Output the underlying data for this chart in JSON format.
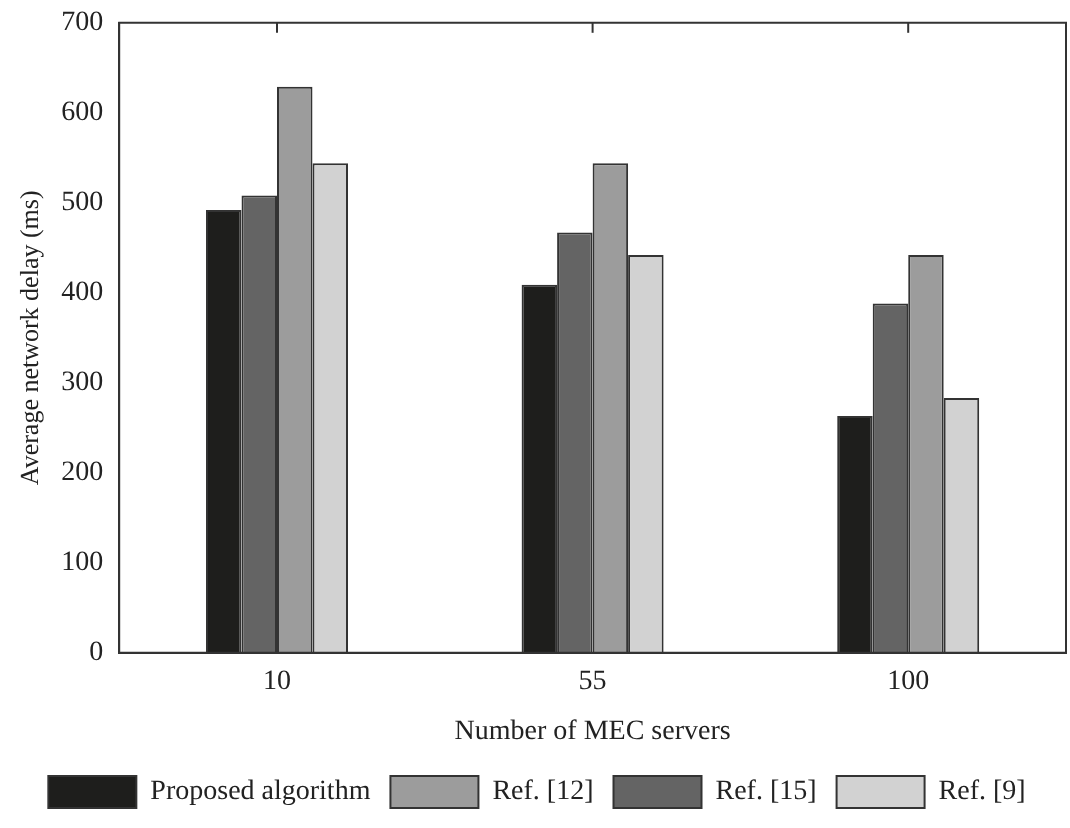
{
  "chart_data": {
    "type": "bar",
    "xlabel": "Number of MEC servers",
    "ylabel": "Average network delay (ms)",
    "categories": [
      "10",
      "55",
      "100"
    ],
    "series": [
      {
        "name": "Proposed algorithm",
        "color": "#1e1e1c",
        "values": [
          492,
          409,
          263
        ]
      },
      {
        "name": "Ref. [15]",
        "color": "#646464",
        "values": [
          508,
          467,
          388
        ]
      },
      {
        "name": "Ref. [12]",
        "color": "#9c9c9c",
        "values": [
          629,
          544,
          442
        ]
      },
      {
        "name": "Ref. [9]",
        "color": "#d2d2d2",
        "values": [
          544,
          442,
          283
        ]
      }
    ],
    "ylim": [
      0,
      700
    ],
    "yticks": [
      0,
      100,
      200,
      300,
      400,
      500,
      600,
      700
    ],
    "grid": false,
    "legend": "bottom"
  }
}
